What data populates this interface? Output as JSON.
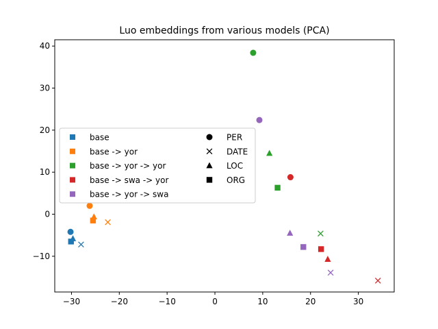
{
  "chart_data": {
    "type": "scatter",
    "title": "Luo embeddings from various models (PCA)",
    "xlabel": "",
    "ylabel": "",
    "xlim": [
      -33.5,
      37.5
    ],
    "ylim": [
      -18.5,
      41.5
    ],
    "xticks": [
      -30,
      -20,
      -10,
      0,
      10,
      20,
      30
    ],
    "yticks": [
      -10,
      0,
      10,
      20,
      30,
      40
    ],
    "grid": false,
    "legend_placement": "center-left",
    "colors": {
      "base": "#1f77b4",
      "base -> yor": "#ff7f0e",
      "base -> yor -> yor": "#2ca02c",
      "base -> swa -> yor": "#d62728",
      "base -> yor -> swa": "#9467bd"
    },
    "model_legend": [
      "base",
      "base -> yor",
      "base -> yor -> yor",
      "base -> swa -> yor",
      "base -> yor -> swa"
    ],
    "type_legend": [
      {
        "label": "PER",
        "marker": "circle"
      },
      {
        "label": "DATE",
        "marker": "x"
      },
      {
        "label": "LOC",
        "marker": "triangle"
      },
      {
        "label": "ORG",
        "marker": "square"
      }
    ],
    "series": [
      {
        "name": "base",
        "points": [
          {
            "type": "PER",
            "x": -30.2,
            "y": -4.2
          },
          {
            "type": "DATE",
            "x": -28.0,
            "y": -7.2
          },
          {
            "type": "LOC",
            "x": -29.7,
            "y": -5.8
          },
          {
            "type": "ORG",
            "x": -30.1,
            "y": -6.5
          }
        ]
      },
      {
        "name": "base -> yor",
        "points": [
          {
            "type": "PER",
            "x": -26.2,
            "y": 2.0
          },
          {
            "type": "DATE",
            "x": -22.4,
            "y": -1.9
          },
          {
            "type": "LOC",
            "x": -25.3,
            "y": -0.6
          },
          {
            "type": "ORG",
            "x": -25.5,
            "y": -1.5
          }
        ]
      },
      {
        "name": "base -> yor -> yor",
        "points": [
          {
            "type": "PER",
            "x": 8.0,
            "y": 38.4
          },
          {
            "type": "DATE",
            "x": 22.1,
            "y": -4.6
          },
          {
            "type": "LOC",
            "x": 11.4,
            "y": 14.5
          },
          {
            "type": "ORG",
            "x": 13.1,
            "y": 6.3
          }
        ]
      },
      {
        "name": "base -> swa -> yor",
        "points": [
          {
            "type": "PER",
            "x": 15.8,
            "y": 8.8
          },
          {
            "type": "DATE",
            "x": 34.1,
            "y": -15.8
          },
          {
            "type": "LOC",
            "x": 23.6,
            "y": -10.7
          },
          {
            "type": "ORG",
            "x": 22.2,
            "y": -8.3
          }
        ]
      },
      {
        "name": "base -> yor -> swa",
        "points": [
          {
            "type": "PER",
            "x": 9.3,
            "y": 22.4
          },
          {
            "type": "DATE",
            "x": 24.2,
            "y": -13.9
          },
          {
            "type": "LOC",
            "x": 15.7,
            "y": -4.5
          },
          {
            "type": "ORG",
            "x": 18.5,
            "y": -7.8
          }
        ]
      }
    ]
  }
}
